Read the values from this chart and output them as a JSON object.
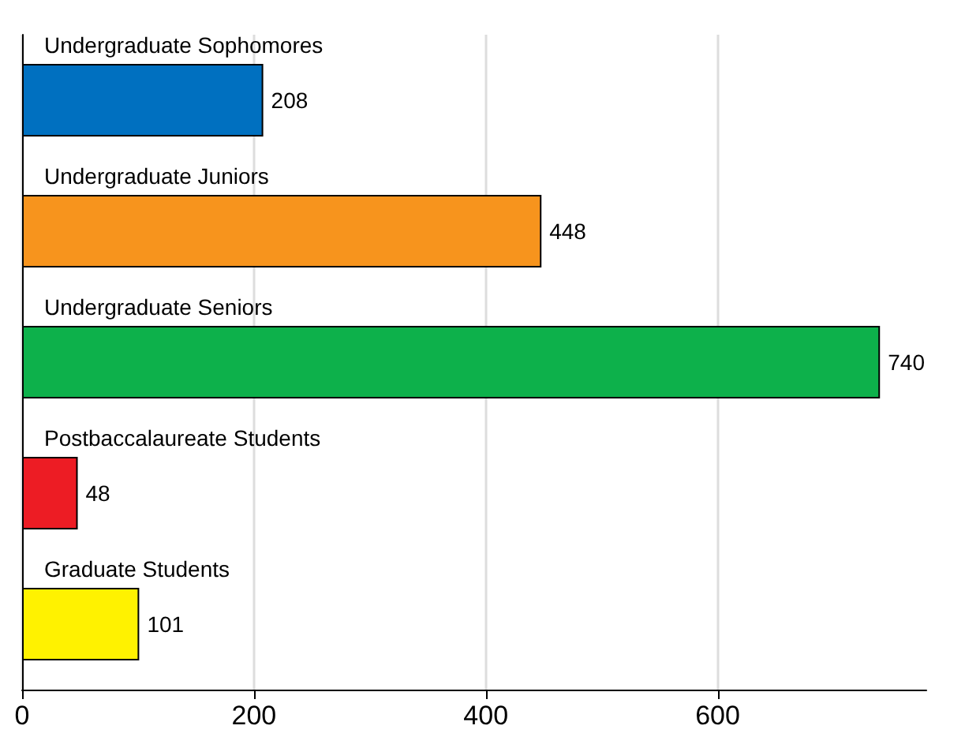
{
  "chart_data": {
    "type": "bar",
    "orientation": "horizontal",
    "categories": [
      "Undergraduate Sophomores",
      "Undergraduate Juniors",
      "Undergraduate Seniors",
      "Postbaccalaureate Students",
      "Graduate Students"
    ],
    "values": [
      208,
      448,
      740,
      48,
      101
    ],
    "colors": [
      "#0070c0",
      "#f7941d",
      "#0db14b",
      "#ed1c24",
      "#fff200"
    ],
    "xlim": [
      0,
      780
    ],
    "xticks": [
      0,
      200,
      400,
      600
    ],
    "grid": "x",
    "data_labels": true
  }
}
